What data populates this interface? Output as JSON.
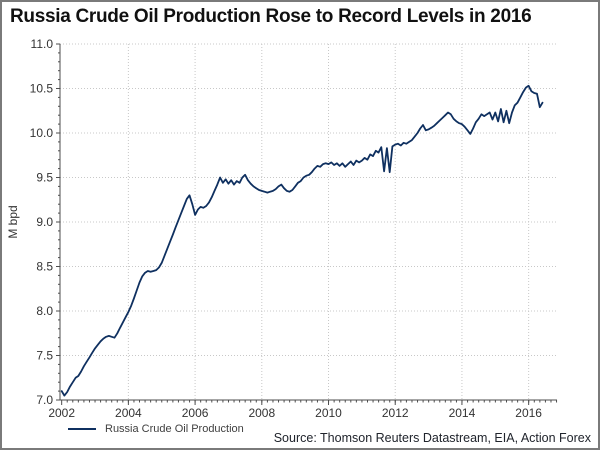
{
  "title": "Russia Crude Oil Production Rose to Record Levels in 2016",
  "source_note": "Source: Thomson Reuters Datastream, EIA, Action Forex",
  "legend": {
    "label": "Russia Crude Oil Production"
  },
  "colors": {
    "line": "#0F3060",
    "grid": "#c8c8c8",
    "axis": "#4d4d4d",
    "tick_text": "#333333",
    "title_text": "#111111",
    "border": "#7a7a7a"
  },
  "chart_data": {
    "type": "line",
    "title": "Russia Crude Oil Production Rose to Record Levels in 2016",
    "xlabel": "",
    "ylabel": "M bpd",
    "ylim": [
      7.0,
      11.0
    ],
    "xlim": [
      2001.95,
      2016.85
    ],
    "y_ticks": [
      7.0,
      7.5,
      8.0,
      8.5,
      9.0,
      9.5,
      10.0,
      10.5,
      11.0
    ],
    "x_ticks": [
      2002,
      2004,
      2006,
      2008,
      2010,
      2012,
      2014,
      2016
    ],
    "y_minor_step": 0.1,
    "x_minor_per_year": 6,
    "grid": true,
    "legend_position": "bottom-left",
    "series": [
      {
        "name": "Russia Crude Oil Production",
        "color": "#0F3060",
        "start_year": 2002,
        "frequency": "monthly",
        "unit": "M bpd",
        "values": [
          7.1,
          7.05,
          7.09,
          7.15,
          7.2,
          7.25,
          7.27,
          7.32,
          7.38,
          7.43,
          7.48,
          7.53,
          7.58,
          7.62,
          7.66,
          7.69,
          7.71,
          7.72,
          7.71,
          7.7,
          7.75,
          7.81,
          7.87,
          7.93,
          7.99,
          8.06,
          8.14,
          8.23,
          8.32,
          8.39,
          8.43,
          8.45,
          8.44,
          8.45,
          8.46,
          8.49,
          8.54,
          8.62,
          8.7,
          8.78,
          8.86,
          8.94,
          9.02,
          9.1,
          9.18,
          9.26,
          9.3,
          9.2,
          9.08,
          9.14,
          9.17,
          9.16,
          9.18,
          9.22,
          9.28,
          9.35,
          9.42,
          9.5,
          9.44,
          9.48,
          9.43,
          9.47,
          9.42,
          9.46,
          9.44,
          9.5,
          9.53,
          9.47,
          9.43,
          9.4,
          9.38,
          9.36,
          9.35,
          9.34,
          9.33,
          9.34,
          9.35,
          9.37,
          9.4,
          9.42,
          9.38,
          9.35,
          9.34,
          9.36,
          9.4,
          9.44,
          9.46,
          9.5,
          9.52,
          9.53,
          9.56,
          9.6,
          9.63,
          9.62,
          9.65,
          9.66,
          9.65,
          9.67,
          9.64,
          9.66,
          9.63,
          9.66,
          9.62,
          9.65,
          9.68,
          9.64,
          9.69,
          9.67,
          9.69,
          9.72,
          9.7,
          9.76,
          9.74,
          9.8,
          9.78,
          9.84,
          9.57,
          9.83,
          9.56,
          9.85,
          9.87,
          9.88,
          9.86,
          9.89,
          9.88,
          9.9,
          9.92,
          9.96,
          10.0,
          10.05,
          10.09,
          10.03,
          10.04,
          10.06,
          10.08,
          10.11,
          10.14,
          10.17,
          10.2,
          10.23,
          10.21,
          10.16,
          10.13,
          10.11,
          10.1,
          10.07,
          10.03,
          9.99,
          10.05,
          10.12,
          10.16,
          10.21,
          10.19,
          10.21,
          10.23,
          10.15,
          10.23,
          10.13,
          10.27,
          10.12,
          10.25,
          10.11,
          10.23,
          10.31,
          10.34,
          10.4,
          10.46,
          10.51,
          10.53,
          10.47,
          10.45,
          10.44,
          10.29,
          10.34
        ]
      }
    ]
  }
}
